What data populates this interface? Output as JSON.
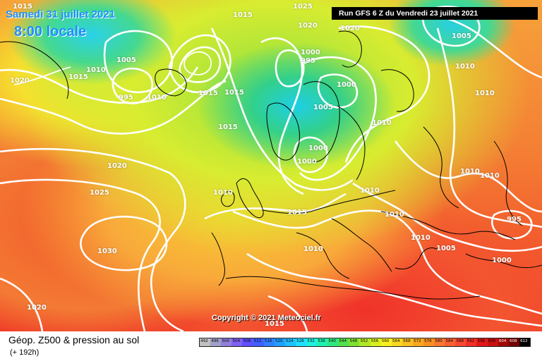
{
  "header": {
    "date_title": "Samedi 31 juillet 2021",
    "local_time": "8:00 locale",
    "run_info": "Run GFS 6 Z du Vendredi 23 juillet 2021"
  },
  "copyright": "Copyright © 2021 Meteociel.fr",
  "footer": {
    "map_title": "Géop. Z500 & pression au sol",
    "forecast_hour": "(+ 192h)"
  },
  "legend": {
    "values": [
      "492",
      "496",
      "500",
      "504",
      "508",
      "512",
      "516",
      "520",
      "524",
      "528",
      "532",
      "536",
      "540",
      "544",
      "548",
      "552",
      "556",
      "560",
      "564",
      "568",
      "572",
      "576",
      "580",
      "584",
      "588",
      "592",
      "596",
      "600",
      "604",
      "608",
      "612"
    ],
    "colors": [
      "#c0c0c0",
      "#a0a0c8",
      "#9080d8",
      "#8060f0",
      "#6050ff",
      "#4060ff",
      "#3080ff",
      "#20a0ff",
      "#20c0ff",
      "#20e0ff",
      "#20f0e0",
      "#20f0b0",
      "#30e880",
      "#50e050",
      "#80e030",
      "#b0e828",
      "#d8f020",
      "#f8f020",
      "#f8d820",
      "#f8c020",
      "#f8a820",
      "#f89020",
      "#f87830",
      "#f86030",
      "#f84830",
      "#f03028",
      "#e01818",
      "#c81010",
      "#a00808",
      "#700000",
      "#000000"
    ]
  },
  "pressure_labels": [
    "1015",
    "1025",
    "1020",
    "1020",
    "1005",
    "1010",
    "1010",
    "1015",
    "1005",
    "1020",
    "995",
    "1010",
    "1015",
    "1000",
    "995",
    "1000",
    "1005",
    "1010",
    "1010",
    "1015",
    "1015",
    "1020",
    "1025",
    "1030",
    "1010",
    "1000",
    "1000",
    "1010",
    "1010",
    "1010",
    "1010",
    "1015",
    "1015",
    "1010",
    "995",
    "1010",
    "1005",
    "1000",
    "1020",
    "1015"
  ],
  "colors": {
    "title_blue": "#1e90ff",
    "run_box_bg": "#000000",
    "isobar": "#ffffff"
  }
}
